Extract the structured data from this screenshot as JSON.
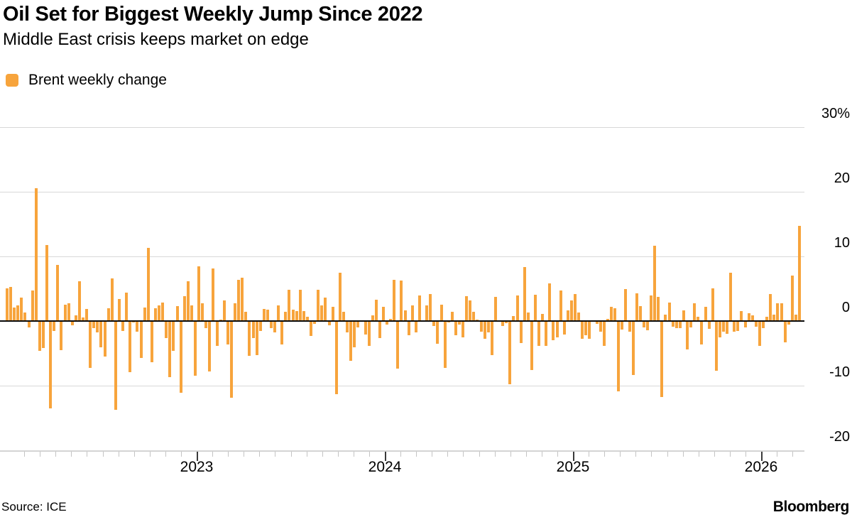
{
  "header": {
    "title": "Oil Set for Biggest Weekly Jump Since 2022",
    "subtitle": "Middle East crisis keeps market on edge"
  },
  "legend": {
    "label": "Brent weekly change",
    "swatch_color": "#F7A43C"
  },
  "footer": {
    "source": "Source: ICE",
    "brand": "Bloomberg"
  },
  "colors": {
    "bar": "#F7A43C",
    "gridline": "#d8d8d8",
    "zero_line": "#0a0a0a",
    "text": "#000000"
  },
  "chart_data": {
    "type": "bar",
    "title": "Oil Set for Biggest Weekly Jump Since 2022",
    "subtitle": "Middle East crisis keeps market on edge",
    "series_name": "Brent weekly change",
    "unit": "%",
    "x_description": "Weekly bars from early 2022 to March 2026",
    "x_year_labels": [
      "2023",
      "2024",
      "2025",
      "2026"
    ],
    "y_ticks": [
      {
        "value": 30,
        "label": "30%"
      },
      {
        "value": 20,
        "label": "20"
      },
      {
        "value": 10,
        "label": "10"
      },
      {
        "value": 0,
        "label": "0"
      },
      {
        "value": -10,
        "label": "-10"
      },
      {
        "value": -20,
        "label": "-20"
      }
    ],
    "ylim": [
      -22,
      31
    ],
    "grid": true,
    "legend_position": "top-left",
    "values": [
      5.1,
      5.3,
      2.1,
      2.4,
      3.6,
      1.3,
      -1.0,
      4.7,
      20.6,
      -4.6,
      -4.2,
      11.8,
      -13.5,
      -1.5,
      8.7,
      -4.5,
      2.5,
      2.8,
      -0.7,
      0.9,
      6.1,
      0.6,
      1.9,
      -7.3,
      -1.1,
      -1.8,
      -4.1,
      -5.5,
      2.0,
      6.6,
      -13.7,
      3.4,
      -1.5,
      4.4,
      -7.9,
      -0.2,
      -1.6,
      -5.7,
      2.1,
      11.3,
      -6.4,
      2.0,
      2.4,
      2.9,
      -2.6,
      -8.7,
      -4.6,
      2.3,
      -11.1,
      3.9,
      6.2,
      2.4,
      -8.5,
      8.5,
      2.8,
      -1.1,
      -7.8,
      8.1,
      -3.9,
      0.2,
      3.2,
      -3.6,
      -11.9,
      2.8,
      6.4,
      6.7,
      1.4,
      -5.4,
      -2.6,
      -5.3,
      -1.5,
      1.9,
      1.8,
      -1.1,
      -1.8,
      2.4,
      -3.6,
      1.4,
      4.8,
      1.8,
      1.5,
      4.8,
      1.5,
      0.7,
      -2.3,
      -0.4,
      4.8,
      2.4,
      3.6,
      -0.7,
      2.2,
      -11.3,
      7.5,
      1.4,
      -1.8,
      -6.2,
      -4.1,
      -1.0,
      -0.1,
      -2.1,
      -3.9,
      0.9,
      3.3,
      -2.6,
      2.2,
      -0.6,
      0.3,
      6.4,
      -7.4,
      6.3,
      1.6,
      -2.2,
      2.4,
      -1.8,
      4.0,
      0.1,
      2.4,
      4.2,
      -0.8,
      -3.5,
      2.5,
      -7.3,
      -0.2,
      1.4,
      -2.2,
      -0.6,
      -2.5,
      3.8,
      3.2,
      1.4,
      0.2,
      -1.7,
      -2.8,
      -1.8,
      -5.3,
      3.7,
      0.1,
      -0.8,
      -0.3,
      -9.8,
      0.8,
      4.0,
      -3.4,
      8.4,
      1.3,
      -7.6,
      4.1,
      -3.9,
      1.1,
      -3.8,
      5.8,
      -3.0,
      -2.5,
      4.7,
      -2.1,
      1.7,
      3.2,
      4.2,
      1.3,
      -2.8,
      -2.2,
      -2.7,
      0.1,
      -0.4,
      -1.7,
      -3.9,
      0.3,
      2.2,
      2.0,
      -10.9,
      -1.3,
      4.9,
      -1.6,
      -8.3,
      4.3,
      2.3,
      -1.0,
      -1.4,
      4.0,
      11.7,
      3.7,
      -11.8,
      1.0,
      2.9,
      -0.9,
      -1.1,
      -1.1,
      1.6,
      -4.4,
      -1.0,
      2.7,
      0.7,
      -3.6,
      2.2,
      -1.2,
      5.1,
      -7.7,
      -2.5,
      -1.7,
      -2.0,
      7.5,
      -1.7,
      -1.5,
      1.5,
      -1.0,
      1.2,
      0.9,
      -0.9,
      -3.9,
      -1.1,
      0.7,
      4.2,
      1.0,
      2.7,
      2.7,
      -3.3,
      -0.6,
      7.0,
      1.0,
      14.7
    ]
  }
}
